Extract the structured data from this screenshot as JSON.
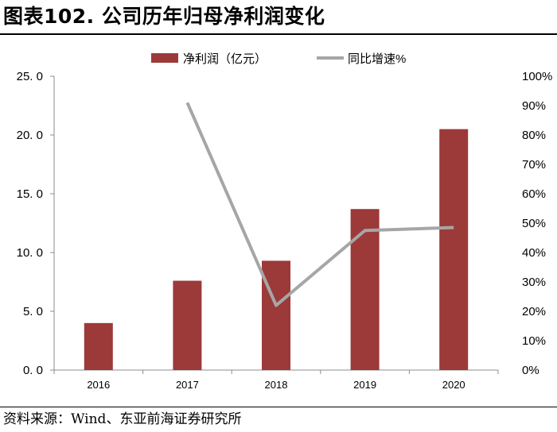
{
  "header": {
    "title": "图表102. 公司历年归母净利润变化"
  },
  "footer": {
    "source": "资料来源：Wind、东亚前海证券研究所"
  },
  "chart_data": {
    "type": "bar",
    "categories": [
      "2016",
      "2017",
      "2018",
      "2019",
      "2020"
    ],
    "series": [
      {
        "name": "净利润（亿元）",
        "type": "bar",
        "axis": "left",
        "values": [
          4.0,
          7.6,
          9.3,
          13.7,
          20.5
        ],
        "color": "#9b3a39"
      },
      {
        "name": "同比增速%",
        "type": "line",
        "axis": "right",
        "values": [
          null,
          91,
          22,
          47.5,
          48.5
        ],
        "color": "#a6a6a6"
      }
    ],
    "left_axis": {
      "min": 0,
      "max": 25,
      "step": 5,
      "tick_labels": [
        "0. 0",
        "5. 0",
        "10. 0",
        "15. 0",
        "20. 0",
        "25. 0"
      ]
    },
    "right_axis": {
      "min": 0,
      "max": 100,
      "step": 10,
      "tick_labels": [
        "0%",
        "10%",
        "20%",
        "30%",
        "40%",
        "50%",
        "60%",
        "70%",
        "80%",
        "90%",
        "100%"
      ]
    },
    "legend_position": "top-center",
    "grid": false
  }
}
